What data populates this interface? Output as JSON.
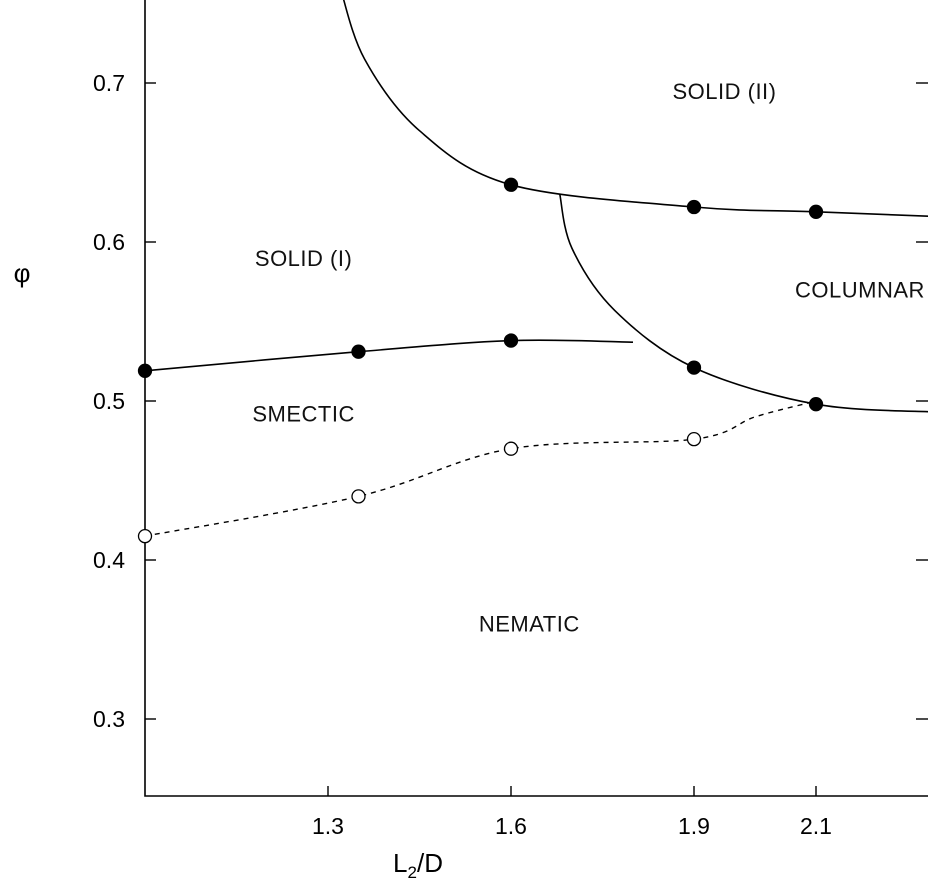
{
  "chart_data": {
    "type": "scatter",
    "xlabel": "L2/D",
    "xlabel_main": "L",
    "xlabel_sub": "2",
    "xlabel_tail": "/D",
    "ylabel": "φ",
    "xlim": [
      1.0,
      2.3
    ],
    "ylim": [
      0.25,
      0.75
    ],
    "x_ticks": [
      1.3,
      1.6,
      1.9,
      2.1
    ],
    "x_tick_labels": [
      "1.3",
      "1.6",
      "1.9",
      "2.1"
    ],
    "y_ticks": [
      0.3,
      0.4,
      0.5,
      0.6,
      0.7
    ],
    "y_tick_labels": [
      "0.3",
      "0.4",
      "0.5",
      "0.6",
      "0.7"
    ],
    "region_labels": [
      {
        "text": "SOLID (II)",
        "x": 1.95,
        "y": 0.69
      },
      {
        "text": "SOLID (I)",
        "x": 1.26,
        "y": 0.585
      },
      {
        "text": "COLUMNAR",
        "x": 2.26,
        "y": 0.565
      },
      {
        "text": "SMECTIC",
        "x": 1.26,
        "y": 0.487
      },
      {
        "text": "NEMATIC",
        "x": 1.63,
        "y": 0.355
      }
    ],
    "series": [
      {
        "marker": "filled-circle",
        "line": "solid",
        "points": [
          [
            1.0,
            0.519
          ],
          [
            1.35,
            0.531
          ],
          [
            1.6,
            0.538
          ],
          [
            1.9,
            0.521
          ],
          [
            2.1,
            0.498
          ]
        ]
      },
      {
        "marker": "filled-circle",
        "line": "solid",
        "points": [
          [
            1.6,
            0.636
          ],
          [
            1.9,
            0.622
          ],
          [
            2.1,
            0.619
          ]
        ]
      },
      {
        "marker": "open-circle",
        "line": "dashed",
        "points": [
          [
            1.0,
            0.415
          ],
          [
            1.35,
            0.44
          ],
          [
            1.6,
            0.47
          ],
          [
            1.9,
            0.476
          ]
        ]
      }
    ],
    "curves": [
      {
        "style": "solid",
        "points": [
          [
            1.0,
            0.519
          ],
          [
            1.35,
            0.531
          ],
          [
            1.6,
            0.538
          ],
          [
            1.8,
            0.537
          ]
        ]
      },
      {
        "style": "solid",
        "points": [
          [
            1.32,
            0.76
          ],
          [
            1.36,
            0.715
          ],
          [
            1.45,
            0.67
          ],
          [
            1.6,
            0.636
          ],
          [
            1.9,
            0.622
          ],
          [
            2.1,
            0.619
          ],
          [
            2.3,
            0.616
          ]
        ]
      },
      {
        "style": "solid",
        "points": [
          [
            1.68,
            0.63
          ],
          [
            1.7,
            0.596
          ],
          [
            1.77,
            0.557
          ],
          [
            1.9,
            0.521
          ],
          [
            2.1,
            0.498
          ],
          [
            2.3,
            0.493
          ]
        ]
      },
      {
        "style": "dashed",
        "points": [
          [
            1.0,
            0.415
          ],
          [
            1.35,
            0.44
          ],
          [
            1.6,
            0.47
          ],
          [
            1.9,
            0.476
          ],
          [
            2.0,
            0.49
          ],
          [
            2.09,
            0.499
          ]
        ]
      }
    ]
  }
}
